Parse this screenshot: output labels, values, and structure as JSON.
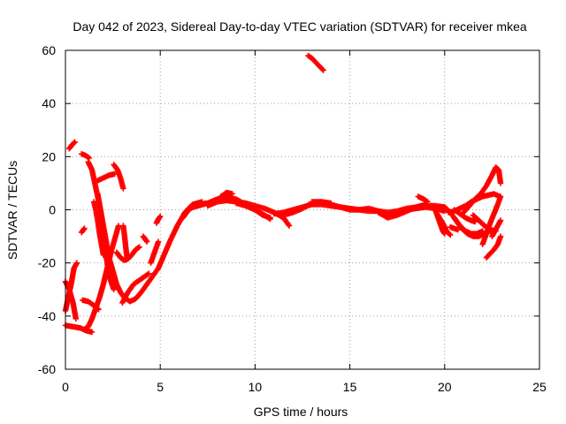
{
  "chart_data": {
    "type": "scatter",
    "title": "Day 042 of 2023, Sidereal Day-to-day VTEC variation (SDTVAR) for receiver mkea",
    "xlabel": "GPS time / hours",
    "ylabel": "SDTVAR / TECUs",
    "xlim": [
      0,
      25
    ],
    "ylim": [
      -60,
      60
    ],
    "xticks": [
      "0",
      "5",
      "10",
      "15",
      "20",
      "25"
    ],
    "yticks": [
      "60",
      "40",
      "20",
      "0",
      "-20",
      "-40",
      "-60"
    ],
    "grid": true,
    "marker": "plus",
    "color": "#ff0000",
    "tracks": [
      [
        [
          0.0,
          -27
        ],
        [
          0.2,
          -30
        ],
        [
          0.4,
          -35
        ],
        [
          0.55,
          -41
        ]
      ],
      [
        [
          0.0,
          -38
        ],
        [
          0.15,
          -33
        ],
        [
          0.3,
          -28
        ],
        [
          0.45,
          -22
        ],
        [
          0.6,
          -20
        ]
      ],
      [
        [
          0.2,
          23
        ],
        [
          0.35,
          24.5
        ],
        [
          0.5,
          25.5
        ]
      ],
      [
        [
          0.0,
          -43.5
        ],
        [
          0.4,
          -44
        ],
        [
          0.8,
          -44.5
        ],
        [
          1.1,
          -45.5
        ],
        [
          1.4,
          -46
        ]
      ],
      [
        [
          0.85,
          -8.5
        ],
        [
          0.95,
          -7.5
        ],
        [
          1.0,
          -7
        ]
      ],
      [
        [
          0.9,
          -34
        ],
        [
          1.2,
          -34.5
        ],
        [
          1.5,
          -36
        ],
        [
          1.75,
          -37.5
        ]
      ],
      [
        [
          0.85,
          21
        ],
        [
          1.05,
          20.5
        ],
        [
          1.25,
          19.5
        ]
      ],
      [
        [
          1.0,
          -45
        ],
        [
          1.2,
          -44
        ],
        [
          1.4,
          -41
        ],
        [
          1.6,
          -37
        ],
        [
          1.8,
          -33
        ],
        [
          2.0,
          -28
        ],
        [
          2.2,
          -22
        ],
        [
          2.4,
          -16
        ],
        [
          2.6,
          -11
        ],
        [
          2.8,
          -6
        ]
      ],
      [
        [
          1.2,
          18
        ],
        [
          1.4,
          15
        ],
        [
          1.55,
          10
        ],
        [
          1.7,
          5
        ],
        [
          1.85,
          0
        ],
        [
          2.0,
          -6
        ],
        [
          2.15,
          -12
        ],
        [
          2.3,
          -18
        ],
        [
          2.5,
          -23
        ],
        [
          2.7,
          -28
        ],
        [
          2.9,
          -31
        ],
        [
          3.1,
          -33
        ],
        [
          3.4,
          -34.5
        ],
        [
          3.7,
          -33.5
        ],
        [
          4.0,
          -31
        ],
        [
          4.3,
          -28
        ],
        [
          4.6,
          -25
        ],
        [
          4.9,
          -22
        ],
        [
          5.2,
          -17
        ],
        [
          5.5,
          -12
        ],
        [
          5.9,
          -6
        ],
        [
          6.3,
          -1
        ],
        [
          6.7,
          2
        ],
        [
          7.2,
          3
        ]
      ],
      [
        [
          1.7,
          11
        ],
        [
          2.0,
          12
        ],
        [
          2.3,
          13
        ],
        [
          2.6,
          13.5
        ]
      ],
      [
        [
          1.7,
          6
        ],
        [
          1.8,
          2
        ],
        [
          1.9,
          -3
        ],
        [
          2.0,
          -9
        ],
        [
          2.1,
          -15
        ],
        [
          2.2,
          -20
        ],
        [
          2.3,
          -24
        ],
        [
          2.4,
          -27
        ],
        [
          2.55,
          -30
        ]
      ],
      [
        [
          1.5,
          3
        ],
        [
          1.6,
          0
        ],
        [
          1.7,
          -4
        ],
        [
          1.8,
          -9
        ],
        [
          1.9,
          -13
        ],
        [
          2.0,
          -17
        ]
      ],
      [
        [
          2.55,
          17
        ],
        [
          2.75,
          15
        ],
        [
          2.9,
          12
        ],
        [
          3.05,
          8
        ]
      ],
      [
        [
          2.7,
          -16
        ],
        [
          2.9,
          -18
        ],
        [
          3.1,
          -19
        ],
        [
          3.3,
          -18.5
        ],
        [
          3.5,
          -17
        ],
        [
          3.7,
          -15
        ],
        [
          3.9,
          -14
        ]
      ],
      [
        [
          3.05,
          -6
        ],
        [
          3.12,
          -10
        ],
        [
          3.18,
          -14
        ],
        [
          3.25,
          -18
        ]
      ],
      [
        [
          3.0,
          -35
        ],
        [
          3.3,
          -31
        ],
        [
          3.6,
          -28
        ],
        [
          4.0,
          -26
        ],
        [
          4.4,
          -24
        ]
      ],
      [
        [
          4.1,
          -10
        ],
        [
          4.2,
          -11
        ],
        [
          4.3,
          -12
        ]
      ],
      [
        [
          4.5,
          -20
        ],
        [
          4.7,
          -16
        ],
        [
          4.9,
          -12
        ]
      ],
      [
        [
          4.8,
          -5
        ],
        [
          4.9,
          -3.5
        ],
        [
          5.0,
          -2.5
        ]
      ],
      [
        [
          6.2,
          -3
        ],
        [
          6.5,
          0
        ],
        [
          6.8,
          1.5
        ],
        [
          7.1,
          2
        ],
        [
          7.4,
          2.5
        ]
      ],
      [
        [
          6.5,
          0.5
        ],
        [
          7.0,
          1.5
        ],
        [
          7.5,
          2.5
        ],
        [
          8.0,
          4
        ],
        [
          8.5,
          5
        ],
        [
          9.0,
          4
        ],
        [
          9.5,
          2
        ],
        [
          10.0,
          0
        ],
        [
          10.5,
          -2
        ],
        [
          10.8,
          -3.5
        ]
      ],
      [
        [
          7.5,
          1.5
        ],
        [
          8.0,
          3
        ],
        [
          8.5,
          3.5
        ],
        [
          9.0,
          3
        ],
        [
          9.5,
          2.5
        ],
        [
          10.0,
          1.5
        ],
        [
          10.5,
          0.5
        ],
        [
          11.0,
          -1
        ],
        [
          11.5,
          -3
        ],
        [
          11.8,
          -6
        ]
      ],
      [
        [
          8.2,
          5
        ],
        [
          8.5,
          6.5
        ],
        [
          8.8,
          6
        ]
      ],
      [
        [
          9.0,
          2.5
        ],
        [
          9.5,
          1.5
        ],
        [
          10.0,
          0
        ],
        [
          10.4,
          -2
        ],
        [
          10.8,
          -3
        ]
      ],
      [
        [
          11.0,
          -1.5
        ],
        [
          11.5,
          -1
        ],
        [
          12.0,
          0
        ],
        [
          12.5,
          1
        ],
        [
          13.0,
          2
        ],
        [
          13.5,
          2
        ],
        [
          14.0,
          1.5
        ],
        [
          14.5,
          1
        ],
        [
          15.0,
          0.5
        ],
        [
          15.5,
          0
        ],
        [
          16.0,
          -0.5
        ],
        [
          16.5,
          -0.5
        ],
        [
          17.0,
          -1
        ],
        [
          17.5,
          -0.5
        ],
        [
          18.0,
          0.5
        ],
        [
          18.5,
          1
        ],
        [
          19.0,
          1.5
        ],
        [
          19.5,
          1.5
        ],
        [
          20.0,
          1
        ]
      ],
      [
        [
          11.5,
          -2
        ],
        [
          12.0,
          -1
        ],
        [
          12.5,
          0.5
        ],
        [
          13.0,
          2.5
        ],
        [
          13.5,
          3
        ],
        [
          14.0,
          2
        ],
        [
          14.5,
          1
        ],
        [
          15.0,
          0
        ],
        [
          15.5,
          0
        ],
        [
          16.0,
          0.5
        ],
        [
          16.5,
          -0.5
        ],
        [
          17.0,
          -2
        ],
        [
          17.5,
          -1
        ],
        [
          18.0,
          0
        ],
        [
          18.5,
          0.5
        ],
        [
          19.0,
          1
        ],
        [
          19.5,
          0.5
        ],
        [
          20.0,
          -0.5
        ]
      ],
      [
        [
          13.0,
          3
        ],
        [
          13.5,
          3
        ],
        [
          14.0,
          2.5
        ]
      ],
      [
        [
          16.5,
          -1
        ],
        [
          17.0,
          -3
        ],
        [
          17.5,
          -2
        ],
        [
          18.0,
          -0.5
        ],
        [
          18.5,
          1
        ],
        [
          19.0,
          2
        ]
      ],
      [
        [
          18.6,
          5
        ],
        [
          18.9,
          4
        ],
        [
          19.1,
          3
        ]
      ],
      [
        [
          19.3,
          1.5
        ],
        [
          19.5,
          0
        ],
        [
          19.7,
          -4
        ],
        [
          19.9,
          -8
        ],
        [
          20.0,
          -9
        ]
      ],
      [
        [
          19.6,
          -1.5
        ],
        [
          19.9,
          -5
        ],
        [
          20.1,
          -8
        ],
        [
          20.3,
          -9.5
        ]
      ],
      [
        [
          20.2,
          -1
        ],
        [
          20.5,
          -0.5
        ],
        [
          20.8,
          0.5
        ],
        [
          21.1,
          1.5
        ],
        [
          21.4,
          3
        ],
        [
          21.7,
          4
        ],
        [
          22.0,
          5
        ],
        [
          22.3,
          5.5
        ],
        [
          22.6,
          6
        ],
        [
          22.9,
          5
        ]
      ],
      [
        [
          20.0,
          1
        ],
        [
          20.3,
          -1
        ],
        [
          20.6,
          -4
        ],
        [
          20.9,
          -7
        ],
        [
          21.2,
          -9
        ],
        [
          21.5,
          -10
        ],
        [
          21.8,
          -10
        ],
        [
          22.1,
          -9
        ],
        [
          22.4,
          -8
        ]
      ],
      [
        [
          20.5,
          -3
        ],
        [
          20.8,
          -6
        ],
        [
          21.1,
          -8
        ],
        [
          21.4,
          -9
        ],
        [
          21.7,
          -9
        ],
        [
          22.0,
          -8
        ]
      ],
      [
        [
          20.3,
          -6.5
        ],
        [
          20.5,
          -7
        ],
        [
          20.7,
          -7.5
        ]
      ],
      [
        [
          20.5,
          0
        ],
        [
          20.8,
          -1.5
        ],
        [
          21.1,
          -3
        ],
        [
          21.4,
          -4
        ],
        [
          21.6,
          -4.5
        ]
      ],
      [
        [
          21.0,
          -1
        ],
        [
          21.3,
          1.5
        ],
        [
          21.6,
          4
        ],
        [
          21.9,
          6
        ],
        [
          22.2,
          9
        ],
        [
          22.5,
          13
        ],
        [
          22.7,
          16
        ],
        [
          22.85,
          15
        ],
        [
          22.95,
          10
        ]
      ],
      [
        [
          21.5,
          -2
        ],
        [
          21.8,
          -4
        ],
        [
          22.1,
          -6
        ],
        [
          22.4,
          -7.5
        ],
        [
          22.7,
          -8
        ]
      ],
      [
        [
          22.0,
          -13
        ],
        [
          22.2,
          -9
        ],
        [
          22.4,
          -5
        ],
        [
          22.6,
          -1.5
        ],
        [
          22.8,
          2
        ],
        [
          22.95,
          5
        ]
      ],
      [
        [
          22.2,
          -18
        ],
        [
          22.4,
          -16.5
        ],
        [
          22.6,
          -15
        ],
        [
          22.8,
          -13
        ],
        [
          22.95,
          -10
        ]
      ],
      [
        [
          22.5,
          -10
        ],
        [
          22.65,
          -8
        ],
        [
          22.8,
          -6
        ],
        [
          22.95,
          -4
        ]
      ],
      [
        [
          12.8,
          58
        ],
        [
          13.0,
          57
        ],
        [
          13.2,
          55.5
        ],
        [
          13.4,
          54
        ],
        [
          13.6,
          52.5
        ]
      ]
    ]
  }
}
